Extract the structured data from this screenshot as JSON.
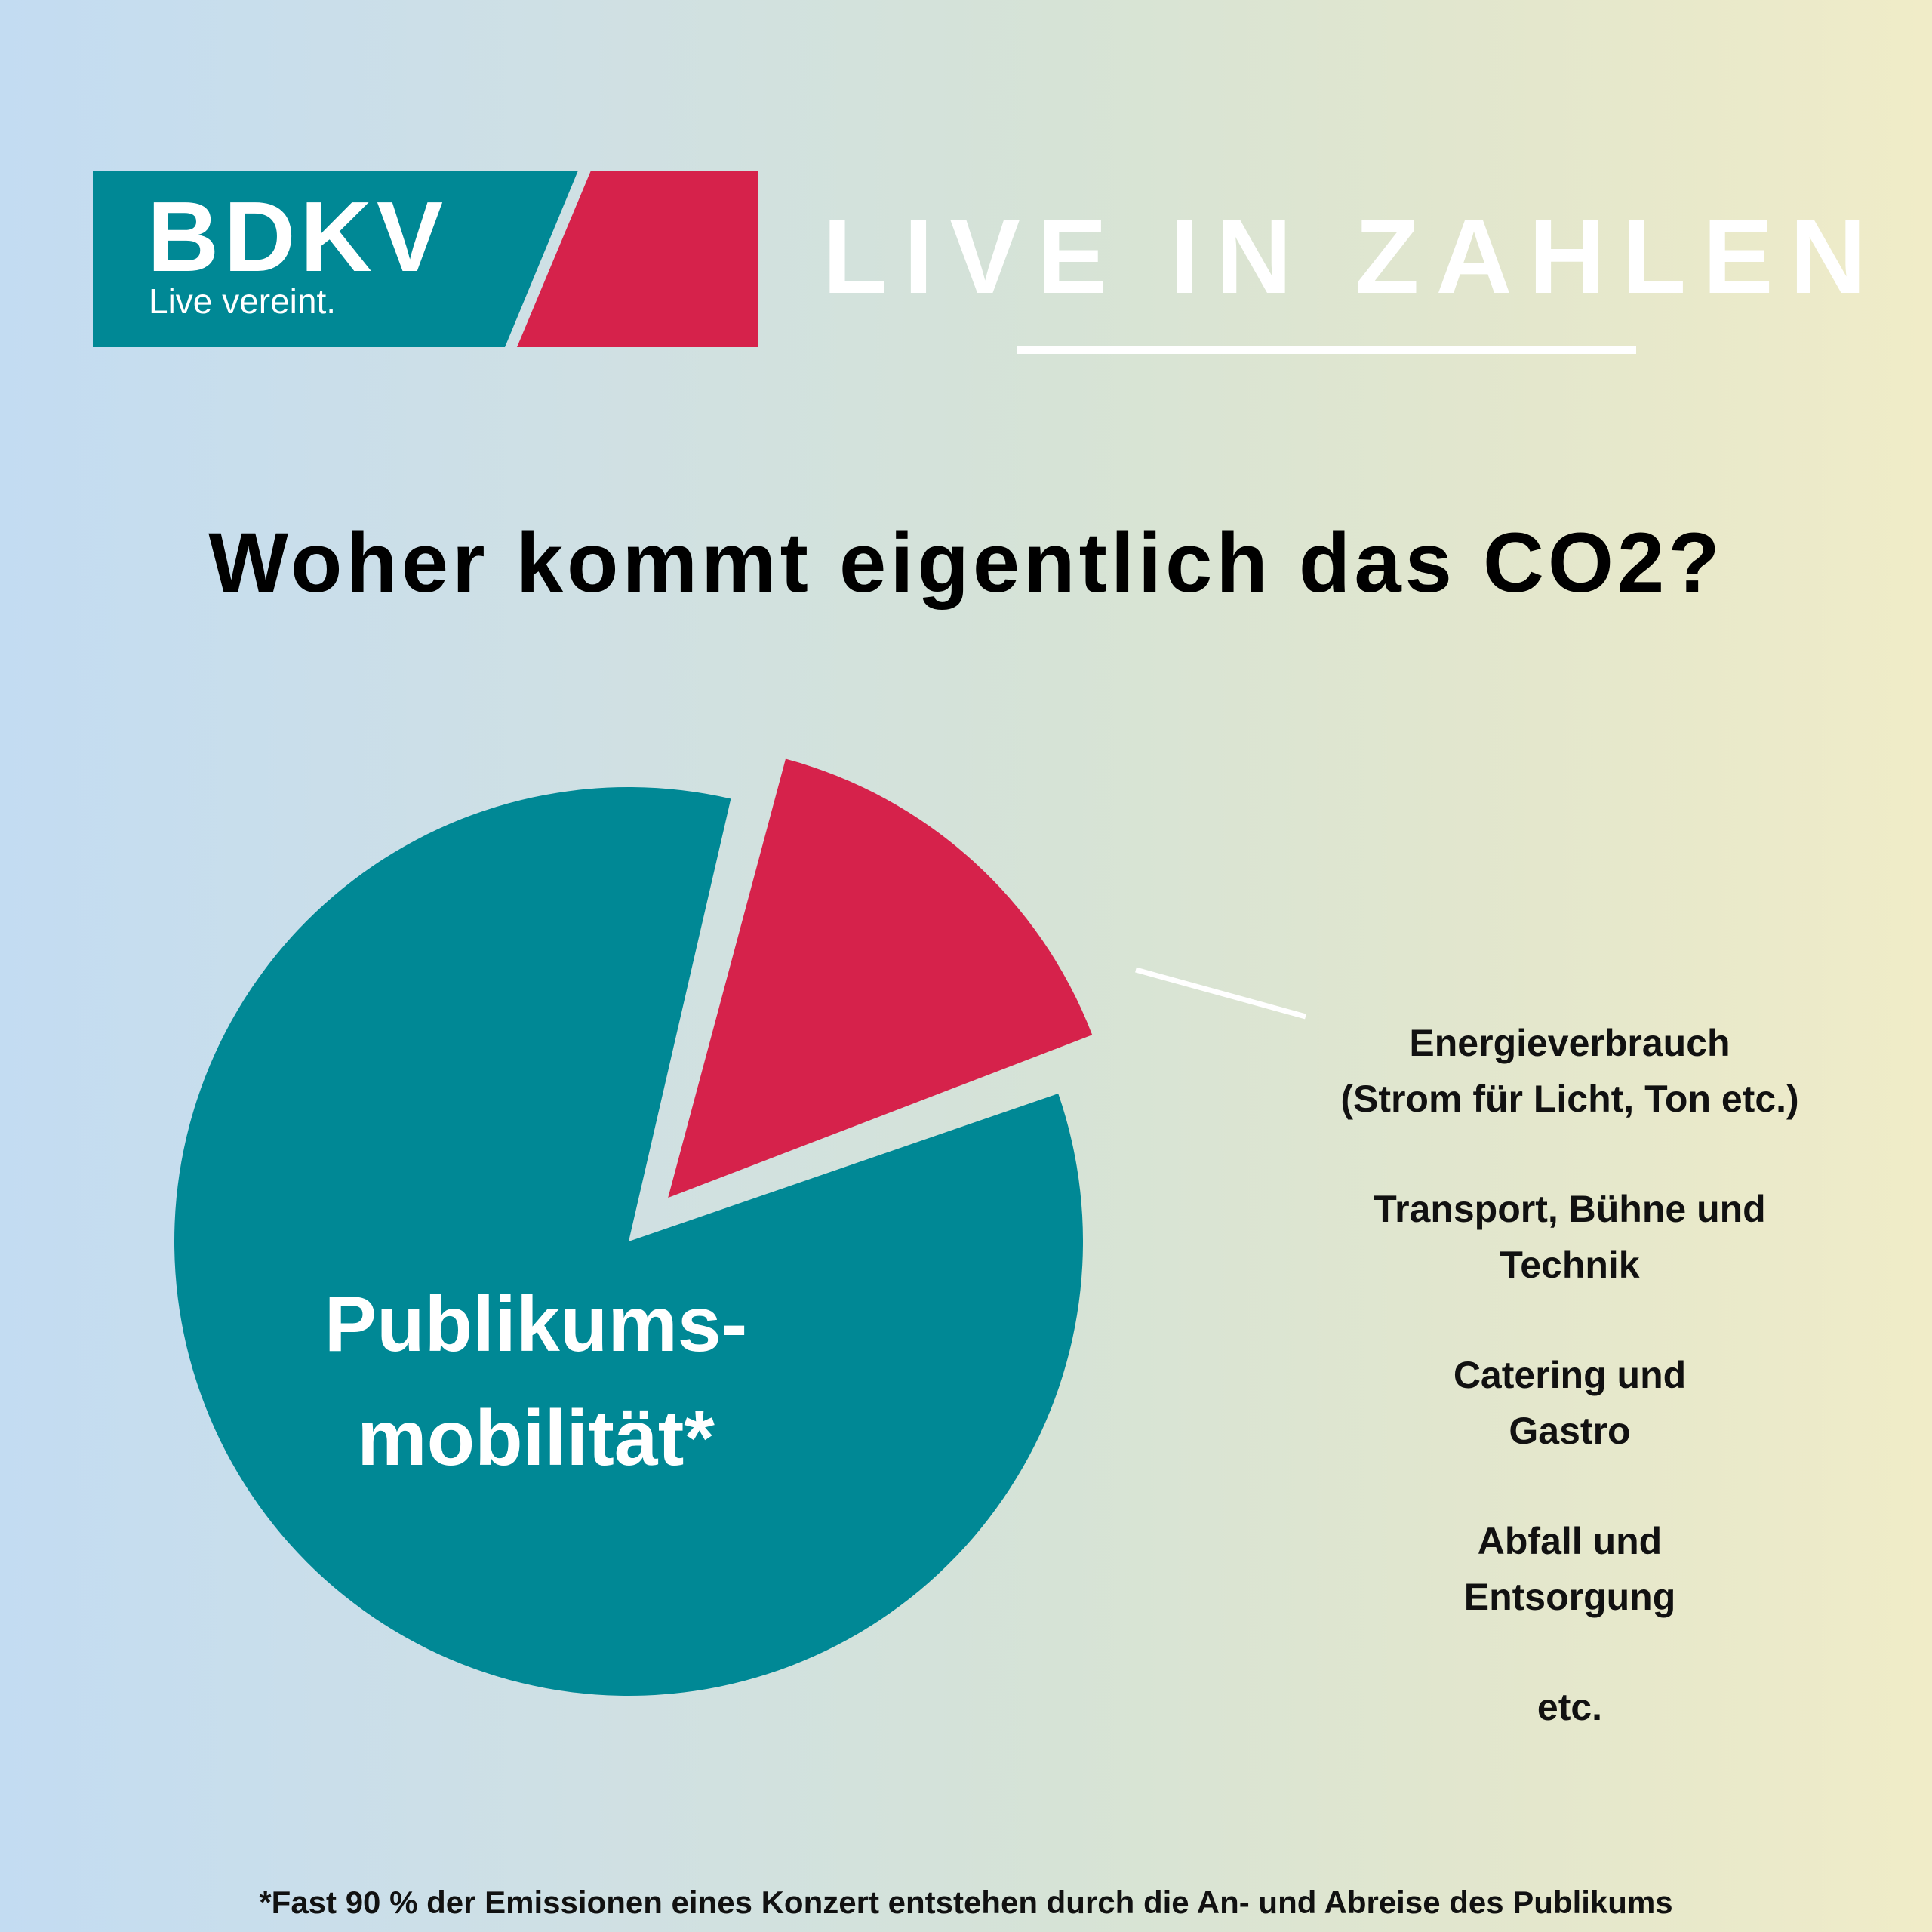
{
  "brand": {
    "name": "BDKV",
    "tagline": "Live vereint.",
    "colors": {
      "teal": "#008895",
      "red": "#d6224b"
    }
  },
  "header": {
    "headline": "LIVE IN ZAHLEN"
  },
  "chart_data": {
    "type": "pie",
    "title": "Woher kommt eigentlich das CO2?",
    "slices": [
      {
        "label_lines": [
          "Publikums-",
          "mobilität*"
        ],
        "value": 85,
        "color": "#008895",
        "exploded": false
      },
      {
        "label_lines": [
          "Energieverbrauch",
          "(Strom für Licht, Ton etc.)",
          "Transport, Bühne und",
          "Technik",
          "Catering und",
          "Gastro",
          "Abfall und",
          "Entsorgung",
          "etc."
        ],
        "value": 15,
        "color": "#d6224b",
        "exploded": true
      }
    ],
    "legend": [
      {
        "lines": [
          "Energieverbrauch",
          "(Strom für Licht, Ton etc.)"
        ]
      },
      {
        "lines": [
          "Transport, Bühne und",
          "Technik"
        ]
      },
      {
        "lines": [
          "Catering und",
          "Gastro"
        ]
      },
      {
        "lines": [
          "Abfall und",
          "Entsorgung"
        ]
      },
      {
        "lines": [
          "etc."
        ]
      }
    ],
    "footnote": "*Fast 90 % der Emissionen eines Konzert entstehen durch die An- und Abreise des Publikums"
  }
}
